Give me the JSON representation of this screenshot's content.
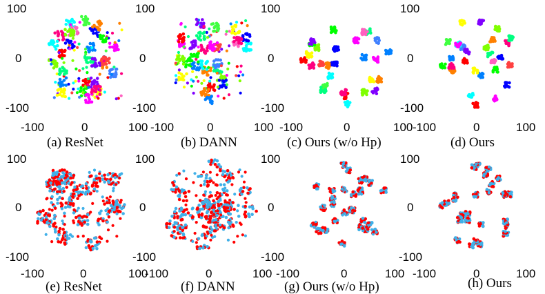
{
  "chart_data": [
    {
      "type": "scatter",
      "caption": "(a) ResNet",
      "row": "class",
      "layout": "clusters",
      "spread": 0.9,
      "seed": 11
    },
    {
      "type": "scatter",
      "caption": "(b) DANN",
      "row": "class",
      "layout": "clusters",
      "spread": 0.85,
      "seed": 23
    },
    {
      "type": "scatter",
      "caption": "(c) Ours (w/o Hp)",
      "row": "class",
      "layout": "clusters",
      "spread": 0.45,
      "seed": 37
    },
    {
      "type": "scatter",
      "caption": "(d) Ours",
      "row": "class",
      "layout": "clusters",
      "spread": 0.35,
      "seed": 41
    },
    {
      "type": "scatter",
      "caption": "(e) ResNet",
      "row": "domain",
      "layout": "mixed",
      "spread": 0.95,
      "seed": 53
    },
    {
      "type": "scatter",
      "caption": "(f) DANN",
      "row": "domain",
      "layout": "mixed",
      "spread": 0.85,
      "seed": 67
    },
    {
      "type": "scatter",
      "caption": "(g) Ours (w/o Hp)",
      "row": "domain",
      "layout": "clusters",
      "spread": 0.4,
      "seed": 71
    },
    {
      "type": "scatter",
      "caption": "(h) Ours",
      "row": "domain",
      "layout": "clusters",
      "spread": 0.35,
      "seed": 83
    }
  ],
  "axes": {
    "xlim": [
      -100,
      100
    ],
    "ylim": [
      -100,
      100
    ],
    "x_ticks": [
      "-100",
      "0",
      "100"
    ],
    "y_ticks": [
      "100",
      "0",
      "-100"
    ]
  },
  "palette": {
    "class": [
      "#ff0000",
      "#ff8000",
      "#ffff00",
      "#80ff00",
      "#00ff00",
      "#00ff80",
      "#00ffff",
      "#0080ff",
      "#0000ff",
      "#8000ff",
      "#ff00ff",
      "#ff0080",
      "#ff4040",
      "#40ff40",
      "#4080ff",
      "#ff60c0"
    ],
    "domain": [
      "#ff0000",
      "#40b0e8"
    ]
  }
}
